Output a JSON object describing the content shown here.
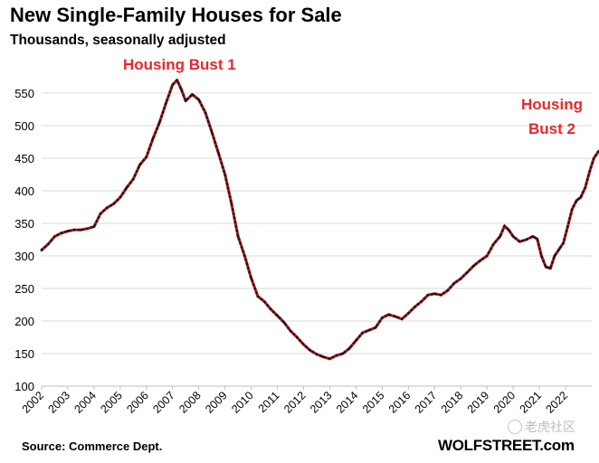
{
  "title": "New Single-Family Houses for Sale",
  "subtitle": "Thousands, seasonally adjusted",
  "annotations": {
    "bust1": "Housing Bust 1",
    "bust2_line1": "Housing",
    "bust2_line2": "Bust 2"
  },
  "footer": {
    "source": "Source: Commerce Dept.",
    "brand": "WOLFSTREET.com"
  },
  "watermark": {
    "icon": "tiger-logo-icon",
    "text": "老虎社区"
  },
  "colors": {
    "line_red": "#e8282b",
    "marker": "#1a1a1a",
    "grid": "#d9d9d9",
    "annotation": "#e8282b"
  },
  "chart_data": {
    "type": "line",
    "title": "New Single-Family Houses for Sale",
    "subtitle": "Thousands, seasonally adjusted",
    "xlabel": "",
    "ylabel": "",
    "ylim": [
      100,
      550
    ],
    "xlim": [
      2002,
      2023
    ],
    "yticks": [
      100,
      150,
      200,
      250,
      300,
      350,
      400,
      450,
      500,
      550
    ],
    "xticks": [
      "2002",
      "2003",
      "2004",
      "2005",
      "2006",
      "2007",
      "2008",
      "2009",
      "2010",
      "2011",
      "2012",
      "2013",
      "2014",
      "2015",
      "2016",
      "2017",
      "2018",
      "2019",
      "2020",
      "2021",
      "2022"
    ],
    "grid": "horizontal",
    "series": [
      {
        "name": "",
        "points": [
          [
            2002.0,
            309
          ],
          [
            2002.25,
            318
          ],
          [
            2002.5,
            330
          ],
          [
            2002.75,
            335
          ],
          [
            2003.0,
            338
          ],
          [
            2003.25,
            340
          ],
          [
            2003.5,
            340
          ],
          [
            2003.75,
            342
          ],
          [
            2004.0,
            345
          ],
          [
            2004.25,
            365
          ],
          [
            2004.5,
            374
          ],
          [
            2004.75,
            380
          ],
          [
            2005.0,
            390
          ],
          [
            2005.25,
            405
          ],
          [
            2005.5,
            418
          ],
          [
            2005.75,
            440
          ],
          [
            2006.0,
            452
          ],
          [
            2006.25,
            480
          ],
          [
            2006.5,
            505
          ],
          [
            2006.75,
            535
          ],
          [
            2007.0,
            563
          ],
          [
            2007.17,
            570
          ],
          [
            2007.33,
            556
          ],
          [
            2007.5,
            538
          ],
          [
            2007.75,
            548
          ],
          [
            2008.0,
            540
          ],
          [
            2008.25,
            520
          ],
          [
            2008.5,
            490
          ],
          [
            2008.75,
            458
          ],
          [
            2009.0,
            425
          ],
          [
            2009.25,
            380
          ],
          [
            2009.5,
            330
          ],
          [
            2009.75,
            300
          ],
          [
            2010.0,
            266
          ],
          [
            2010.25,
            238
          ],
          [
            2010.5,
            230
          ],
          [
            2010.75,
            218
          ],
          [
            2011.0,
            208
          ],
          [
            2011.25,
            198
          ],
          [
            2011.5,
            185
          ],
          [
            2011.75,
            175
          ],
          [
            2012.0,
            164
          ],
          [
            2012.25,
            155
          ],
          [
            2012.5,
            149
          ],
          [
            2012.75,
            145
          ],
          [
            2013.0,
            142
          ],
          [
            2013.25,
            147
          ],
          [
            2013.5,
            150
          ],
          [
            2013.75,
            158
          ],
          [
            2014.0,
            170
          ],
          [
            2014.25,
            182
          ],
          [
            2014.5,
            186
          ],
          [
            2014.75,
            190
          ],
          [
            2015.0,
            205
          ],
          [
            2015.25,
            210
          ],
          [
            2015.5,
            207
          ],
          [
            2015.75,
            203
          ],
          [
            2016.0,
            212
          ],
          [
            2016.25,
            222
          ],
          [
            2016.5,
            230
          ],
          [
            2016.75,
            240
          ],
          [
            2017.0,
            242
          ],
          [
            2017.25,
            240
          ],
          [
            2017.5,
            247
          ],
          [
            2017.75,
            258
          ],
          [
            2018.0,
            265
          ],
          [
            2018.25,
            275
          ],
          [
            2018.5,
            285
          ],
          [
            2018.75,
            293
          ],
          [
            2019.0,
            300
          ],
          [
            2019.25,
            318
          ],
          [
            2019.5,
            330
          ],
          [
            2019.67,
            346
          ],
          [
            2019.83,
            340
          ],
          [
            2020.0,
            330
          ],
          [
            2020.25,
            322
          ],
          [
            2020.5,
            325
          ],
          [
            2020.75,
            330
          ],
          [
            2020.92,
            326
          ],
          [
            2021.08,
            300
          ],
          [
            2021.25,
            283
          ],
          [
            2021.42,
            281
          ],
          [
            2021.58,
            300
          ],
          [
            2021.75,
            310
          ],
          [
            2021.92,
            320
          ],
          [
            2022.08,
            345
          ],
          [
            2022.25,
            372
          ],
          [
            2022.42,
            385
          ],
          [
            2022.58,
            390
          ],
          [
            2022.75,
            405
          ],
          [
            2022.92,
            430
          ],
          [
            2023.08,
            450
          ],
          [
            2023.25,
            460
          ],
          [
            2023.42,
            465
          ],
          [
            2023.58,
            468
          ],
          [
            2023.75,
            462
          ]
        ]
      }
    ]
  }
}
